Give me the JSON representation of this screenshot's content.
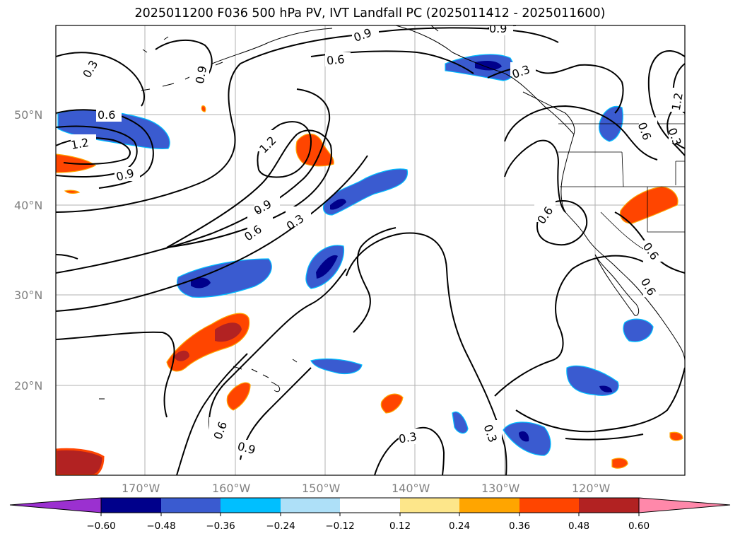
{
  "title": "2025011200 F036 500 hPa PV, IVT Landfall PC (2025011412 - 2025011600)",
  "map": {
    "lat_labels": [
      "50°N",
      "40°N",
      "30°N",
      "20°N"
    ],
    "lon_labels": [
      "170°W",
      "160°W",
      "150°W",
      "140°W",
      "130°W",
      "120°W"
    ],
    "extent": {
      "lon": [
        -180,
        -110
      ],
      "lat": [
        10,
        60
      ]
    },
    "grid": true,
    "contour_color": "#000000",
    "contour_labels": [
      "0.3",
      "0.6",
      "1.2",
      "0.9",
      "0.6",
      "0.3",
      "0.9",
      "0.6",
      "0.3",
      "0.9",
      "0.6",
      "0.3",
      "0.6",
      "0.6",
      "0.6",
      "0.6",
      "1.2",
      "0.9",
      "0.3",
      "0.9",
      "0.3"
    ]
  },
  "colorbar": {
    "ticks": [
      "−0.60",
      "−0.48",
      "−0.36",
      "−0.24",
      "−0.12",
      "0.12",
      "0.24",
      "0.36",
      "0.48",
      "0.60"
    ],
    "colors": [
      "#9b30d0",
      "#00008b",
      "#3a5bd0",
      "#00bfff",
      "#aee0f8",
      "#ffffff",
      "#fde68a",
      "#ffa500",
      "#ff4500",
      "#b22222",
      "#ff88aa"
    ]
  },
  "positive_color": "#ff4500",
  "positive_dark": "#b22222",
  "positive_edge": "#ffa500",
  "negative_color": "#3a5bd0",
  "negative_dark": "#00008b",
  "negative_edge": "#00bfff"
}
